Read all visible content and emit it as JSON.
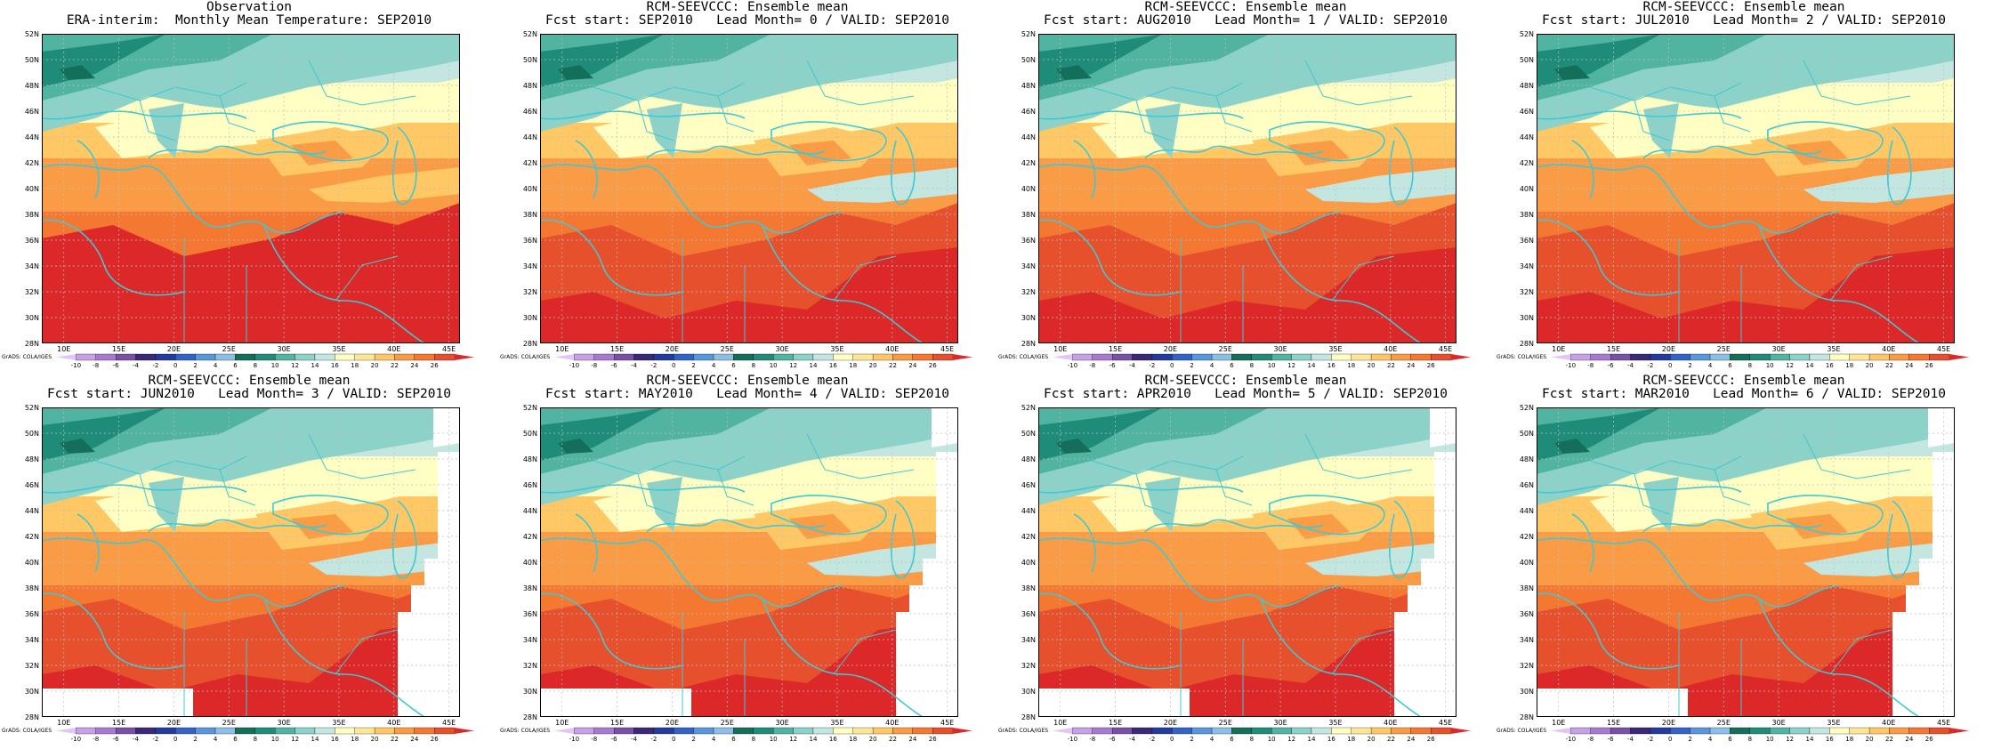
{
  "panels": [
    {
      "title1": "Observation",
      "title2": "ERA-interim:  Monthly Mean Temperature: SEP2010",
      "variant": 0
    },
    {
      "title1": "RCM-SEEVCCC: Ensemble mean",
      "title2": "Fcst start: SEP2010   Lead Month= 0 / VALID: SEP2010",
      "variant": 1
    },
    {
      "title1": "RCM-SEEVCCC: Ensemble mean",
      "title2": "Fcst start: AUG2010   Lead Month= 1 / VALID: SEP2010",
      "variant": 2
    },
    {
      "title1": "RCM-SEEVCCC: Ensemble mean",
      "title2": "Fcst start: JUL2010   Lead Month= 2 / VALID: SEP2010",
      "variant": 3
    },
    {
      "title1": "RCM-SEEVCCC: Ensemble mean",
      "title2": "Fcst start: JUN2010   Lead Month= 3 / VALID: SEP2010",
      "variant": 4
    },
    {
      "title1": "RCM-SEEVCCC: Ensemble mean",
      "title2": "Fcst start: MAY2010   Lead Month= 4 / VALID: SEP2010",
      "variant": 5
    },
    {
      "title1": "RCM-SEEVCCC: Ensemble mean",
      "title2": "Fcst start: APR2010   Lead Month= 5 / VALID: SEP2010",
      "variant": 6
    },
    {
      "title1": "RCM-SEEVCCC: Ensemble mean",
      "title2": "Fcst start: MAR2010   Lead Month= 6 / VALID: SEP2010",
      "variant": 7
    }
  ],
  "lat_labels": [
    "52N",
    "50N",
    "48N",
    "46N",
    "44N",
    "42N",
    "40N",
    "38N",
    "36N",
    "34N",
    "32N",
    "30N",
    "28N"
  ],
  "lon_labels": [
    "10E",
    "15E",
    "20E",
    "25E",
    "30E",
    "35E",
    "40E",
    "45E"
  ],
  "lon_values": [
    10,
    15,
    20,
    25,
    30,
    35,
    40,
    45
  ],
  "lat_values": [
    52,
    50,
    48,
    46,
    44,
    42,
    40,
    38,
    36,
    34,
    32,
    30,
    28
  ],
  "colorbar": {
    "labels": [
      "-10",
      "-8",
      "-6",
      "-4",
      "-2",
      "0",
      "2",
      "4",
      "6",
      "8",
      "10",
      "12",
      "14",
      "16",
      "18",
      "20",
      "22",
      "24",
      "26"
    ],
    "colors": [
      "#e1c8f0",
      "#c8a0e6",
      "#a878d2",
      "#7850aa",
      "#3c2878",
      "#233c9c",
      "#3264c8",
      "#5a96dc",
      "#8cbee6",
      "#146e5a",
      "#1e8c78",
      "#50b4a0",
      "#8cd2c8",
      "#c3e6e1",
      "#ffffc3",
      "#ffe696",
      "#ffc864",
      "#fa9b46",
      "#f57832",
      "#e6502d",
      "#dc2828"
    ]
  },
  "grads_credit": "GrADS: COLA/IGES"
}
